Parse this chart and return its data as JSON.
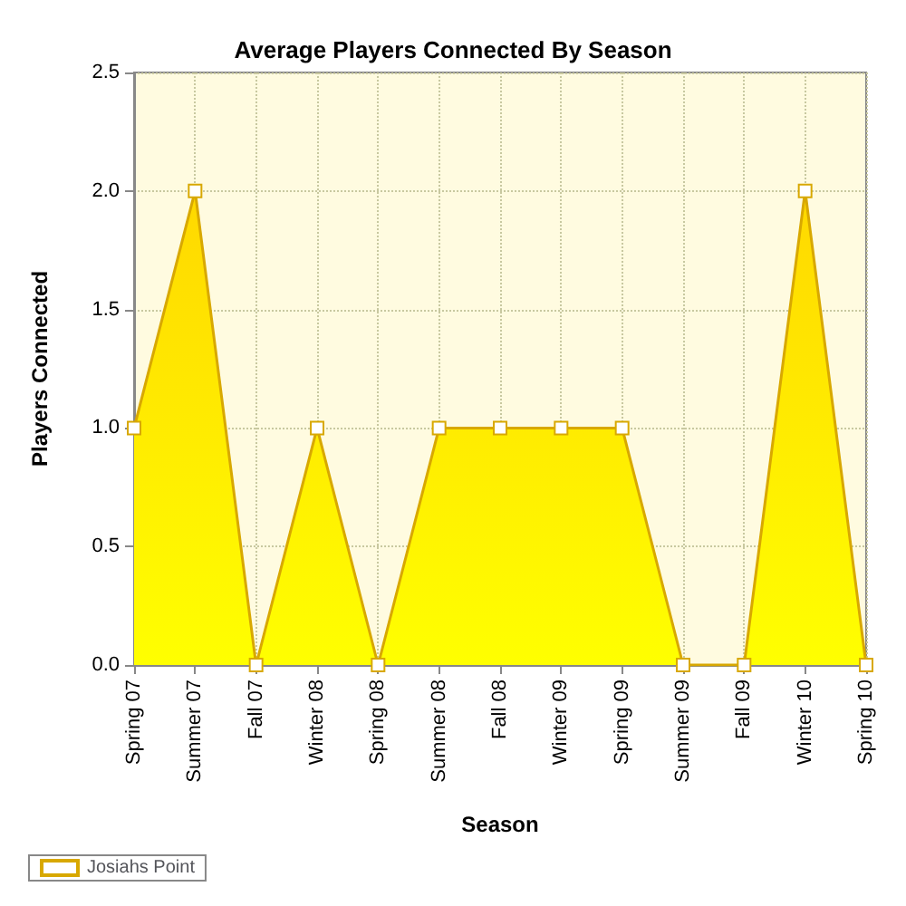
{
  "chart_data": {
    "type": "area",
    "title": "Average Players Connected By Season",
    "xlabel": "Season",
    "ylabel": "Players Connected",
    "categories": [
      "Spring 07",
      "Summer 07",
      "Fall 07",
      "Winter 08",
      "Spring 08",
      "Summer 08",
      "Fall 08",
      "Winter 09",
      "Spring 09",
      "Summer 09",
      "Fall 09",
      "Winter 10",
      "Spring 10"
    ],
    "series": [
      {
        "name": "Josiahs Point",
        "color": "#ffd800",
        "values": [
          1,
          2,
          0,
          1,
          0,
          1,
          1,
          1,
          1,
          0,
          0,
          2,
          0
        ]
      }
    ],
    "ylim": [
      0,
      2.5
    ],
    "yticks": [
      {
        "value": 0,
        "label": "0.0"
      },
      0.5,
      {
        "value": 1,
        "label": "1.0"
      },
      1.5,
      {
        "value": 2,
        "label": "2.0"
      },
      2.5
    ],
    "grid": true,
    "legend": "bottom left",
    "marker": "square"
  }
}
